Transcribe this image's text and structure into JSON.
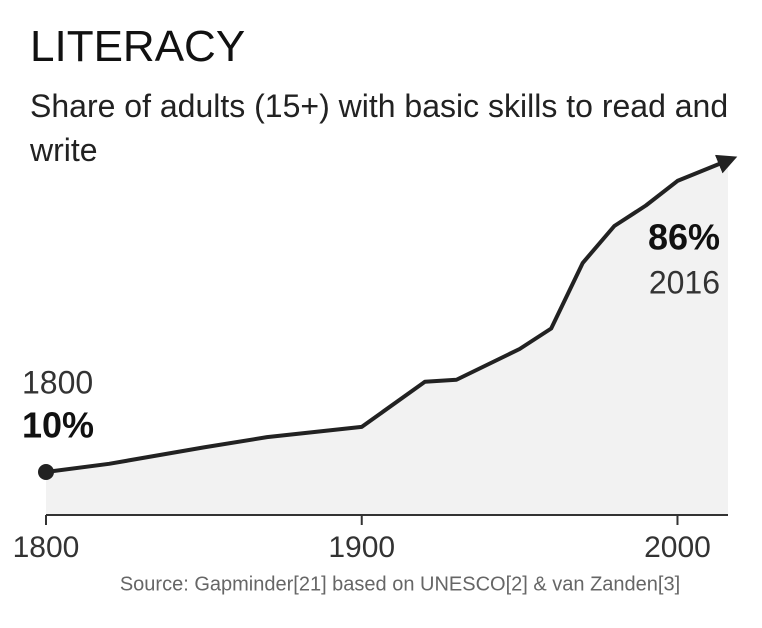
{
  "chart_data": {
    "type": "area",
    "title": "LITERACY",
    "subtitle": "Share of adults (15+) with basic skills to read and write",
    "x": [
      1800,
      1820,
      1850,
      1870,
      1900,
      1920,
      1930,
      1950,
      1960,
      1970,
      1980,
      1990,
      2000,
      2016
    ],
    "values": [
      10,
      12,
      16,
      18.5,
      21,
      32,
      32.5,
      40,
      45,
      61,
      70,
      75,
      81,
      86
    ],
    "value_labels": [
      "10%",
      null,
      null,
      null,
      null,
      null,
      null,
      null,
      null,
      null,
      null,
      null,
      null,
      "86%"
    ],
    "color": "#222222",
    "fill": "#f2f2f2",
    "xlim": [
      1800,
      2016
    ],
    "xticks": [
      1800,
      1900,
      2000
    ],
    "source": "Source: Gapminder[21] based on UNESCO[2] & van Zanden[3]"
  }
}
